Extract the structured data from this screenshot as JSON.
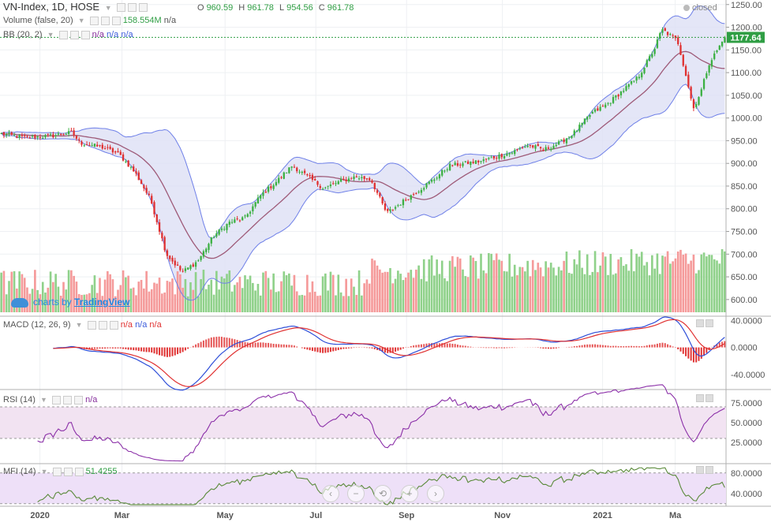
{
  "header": {
    "symbol": "VN-Index, 1D, HOSE",
    "ohlc": {
      "o_label": "O",
      "o": "960.59",
      "h_label": "H",
      "h": "961.78",
      "l_label": "L",
      "l": "954.56",
      "c_label": "C",
      "c": "961.78"
    },
    "closed_label": "closed"
  },
  "indicators": {
    "volume": {
      "label": "Volume (false, 20)",
      "value": "158.554M",
      "na": "n/a"
    },
    "bb": {
      "label": "BB (20, 2)",
      "na1": "n/a",
      "na2": "n/a",
      "na3": "n/a"
    },
    "macd": {
      "label": "MACD (12, 26, 9)",
      "na1": "n/a",
      "na2": "n/a",
      "na3": "n/a"
    },
    "rsi": {
      "label": "RSI (14)",
      "na": "n/a"
    },
    "mfi": {
      "label": "MFI (14)",
      "value": "51.4255"
    }
  },
  "branding": {
    "prefix": "charts by",
    "name": "TradingView"
  },
  "last_price_tag": "1177.64",
  "nav_buttons": [
    "‹",
    "−",
    "⟲",
    "+",
    "›"
  ],
  "colors": {
    "up": "#3cb043",
    "down": "#e03131",
    "vol_up": "#8fd18a",
    "vol_down": "#f59a9a",
    "bb_band": "#6f80e8",
    "bb_fill": "#dde0f5",
    "bb_basis": "#9e5a78",
    "macd_line": "#2f4fd8",
    "macd_signal": "#e03131",
    "rsi_line": "#8b2fa8",
    "rsi_band": "#f2e3f2",
    "mfi_line": "#5a8a3a",
    "mfi_band": "#eee0f8",
    "last_price": "#2f9e44"
  },
  "chart_data": [
    {
      "type": "candlestick",
      "title": "VN-Index, 1D, HOSE",
      "ylim": [
        565,
        1260
      ],
      "yticks": [
        "1250.00",
        "1200.00",
        "1150.00",
        "1100.00",
        "1050.00",
        "1000.00",
        "950.00",
        "900.00",
        "850.00",
        "800.00",
        "750.00",
        "700.00",
        "650.00",
        "600.00"
      ],
      "x_labels": [
        "2020",
        "Mar",
        "May",
        "Jul",
        "Sep",
        "Nov",
        "2021",
        "Ma"
      ],
      "x_label_fracs": [
        0.055,
        0.168,
        0.31,
        0.435,
        0.56,
        0.692,
        0.83,
        0.93
      ],
      "close_series_keypoints": [
        [
          0,
          965
        ],
        [
          3,
          957
        ],
        [
          6,
          960
        ],
        [
          9,
          968
        ],
        [
          10,
          945
        ],
        [
          13,
          935
        ],
        [
          15,
          920
        ],
        [
          17,
          880
        ],
        [
          19,
          820
        ],
        [
          21,
          700
        ],
        [
          23,
          660
        ],
        [
          25,
          685
        ],
        [
          27,
          740
        ],
        [
          29,
          770
        ],
        [
          31,
          780
        ],
        [
          33,
          830
        ],
        [
          35,
          860
        ],
        [
          37,
          895
        ],
        [
          39,
          870
        ],
        [
          41,
          845
        ],
        [
          43,
          860
        ],
        [
          45,
          870
        ],
        [
          47,
          865
        ],
        [
          49,
          790
        ],
        [
          51,
          815
        ],
        [
          53,
          840
        ],
        [
          55,
          865
        ],
        [
          57,
          895
        ],
        [
          59,
          900
        ],
        [
          61,
          905
        ],
        [
          63,
          915
        ],
        [
          65,
          925
        ],
        [
          67,
          940
        ],
        [
          69,
          930
        ],
        [
          71,
          945
        ],
        [
          73,
          970
        ],
        [
          75,
          1010
        ],
        [
          77,
          1030
        ],
        [
          79,
          1060
        ],
        [
          81,
          1090
        ],
        [
          83,
          1150
        ],
        [
          84,
          1195
        ],
        [
          86,
          1170
        ],
        [
          87,
          1100
        ],
        [
          88,
          1020
        ],
        [
          89,
          1060
        ],
        [
          90,
          1120
        ],
        [
          92,
          1177
        ]
      ],
      "last_price": 1177.64,
      "volume_axis": {
        "range_label": "Volume",
        "n_bars": 93
      },
      "bollinger": {
        "period": 20,
        "mult": 2
      }
    },
    {
      "type": "line",
      "title": "MACD (12, 26, 9)",
      "ylim": [
        -60,
        45
      ],
      "yticks": [
        "40.0000",
        "0.0000",
        "-40.0000"
      ]
    },
    {
      "type": "line",
      "title": "RSI (14)",
      "ylim": [
        0,
        90
      ],
      "yticks": [
        "75.0000",
        "50.0000",
        "25.0000"
      ],
      "bands": [
        30,
        70
      ]
    },
    {
      "type": "line",
      "title": "MFI (14)",
      "value": 51.4255,
      "ylim": [
        15,
        95
      ],
      "yticks": [
        "80.0000",
        "40.0000"
      ],
      "bands": [
        20,
        80
      ]
    }
  ]
}
